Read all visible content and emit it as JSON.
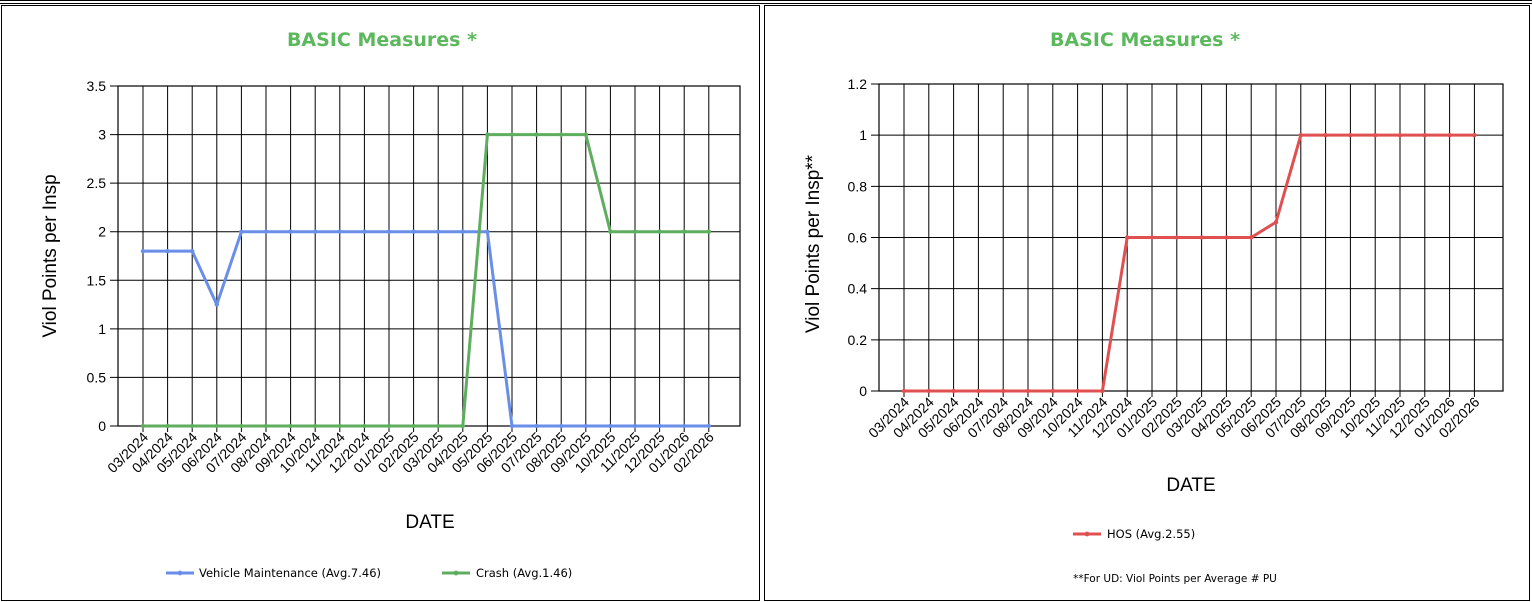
{
  "chart_data": [
    {
      "type": "line",
      "title": "BASIC Measures *",
      "xlabel": "DATE",
      "ylabel": "Viol Points per Insp",
      "ylim": [
        0,
        3.5
      ],
      "yticks": [
        "0",
        "0.5",
        "1",
        "1.5",
        "2",
        "2.5",
        "3",
        "3.5"
      ],
      "grid": true,
      "legend_position": "bottom",
      "categories": [
        "03/2024",
        "04/2024",
        "05/2024",
        "06/2024",
        "07/2024",
        "08/2024",
        "09/2024",
        "10/2024",
        "11/2024",
        "12/2024",
        "01/2025",
        "02/2025",
        "03/2025",
        "04/2025",
        "05/2025",
        "06/2025",
        "07/2025",
        "08/2025",
        "09/2025",
        "10/2025",
        "11/2025",
        "12/2025",
        "01/2026",
        "02/2026"
      ],
      "series": [
        {
          "name": "Vehicle Maintenance (Avg.7.46)",
          "color": "#6a8fe8",
          "values": [
            1.8,
            1.8,
            1.8,
            1.25,
            2,
            2,
            2,
            2,
            2,
            2,
            2,
            2,
            2,
            2,
            2,
            0,
            0,
            0,
            0,
            0,
            0,
            0,
            0,
            0
          ]
        },
        {
          "name": "Crash (Avg.1.46)",
          "color": "#5fae5f",
          "values": [
            0,
            0,
            0,
            0,
            0,
            0,
            0,
            0,
            0,
            0,
            0,
            0,
            0,
            0,
            3,
            3,
            3,
            3,
            3,
            2,
            2,
            2,
            2,
            2
          ]
        }
      ]
    },
    {
      "type": "line",
      "title": "BASIC Measures *",
      "xlabel": "DATE",
      "ylabel": "Viol Points per Insp**",
      "ylim": [
        0,
        1.2
      ],
      "yticks": [
        "0",
        "0.2",
        "0.4",
        "0.6",
        "0.8",
        "1",
        "1.2"
      ],
      "grid": true,
      "legend_position": "bottom",
      "footnote": "**For UD: Viol Points per Average # PU",
      "categories": [
        "03/2024",
        "04/2024",
        "05/2024",
        "06/2024",
        "07/2024",
        "08/2024",
        "09/2024",
        "10/2024",
        "11/2024",
        "12/2024",
        "01/2025",
        "02/2025",
        "03/2025",
        "04/2025",
        "05/2025",
        "06/2025",
        "07/2025",
        "08/2025",
        "09/2025",
        "10/2025",
        "11/2025",
        "12/2025",
        "01/2026",
        "02/2026"
      ],
      "series": [
        {
          "name": "HOS (Avg.2.55)",
          "color": "#e05050",
          "values": [
            0,
            0,
            0,
            0,
            0,
            0,
            0,
            0,
            0,
            0.6,
            0.6,
            0.6,
            0.6,
            0.6,
            0.6,
            0.66,
            1,
            1,
            1,
            1,
            1,
            1,
            1,
            1
          ]
        }
      ]
    }
  ]
}
